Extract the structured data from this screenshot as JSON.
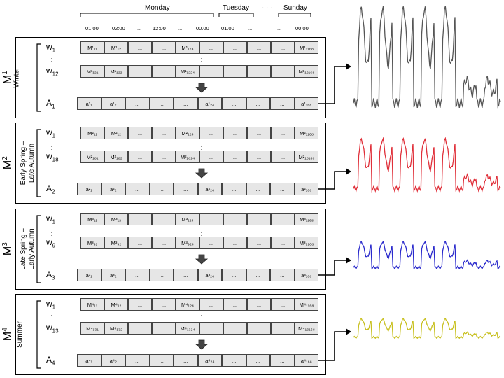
{
  "header": {
    "days": [
      "Monday",
      "Tuesday",
      "Sunday"
    ],
    "day_ellipsis": "· · ·",
    "times": [
      "01:00",
      "02:00",
      "...",
      "12:00",
      "...",
      "00.00",
      "01.00",
      "...",
      "...",
      "00.00"
    ]
  },
  "panels": [
    {
      "model": "M",
      "model_sup": "1",
      "season": "Winter",
      "rows": [
        {
          "w": "w",
          "w_sub": "1",
          "cells": [
            "M¹₁₁",
            "M¹₁₂",
            "...",
            "...",
            "M¹₁₂₄",
            "...",
            "...",
            "...",
            "...",
            "M¹₁₁₆₈"
          ]
        },
        {
          "w": "w",
          "w_sub": "12",
          "cells": [
            "M¹₁₂₁",
            "M¹₁₂₂",
            "...",
            "...",
            "M¹₁₂₂₄",
            "...",
            "...",
            "...",
            "...",
            "M¹₁₂₁₆₈"
          ]
        }
      ],
      "agg": {
        "a": "A",
        "a_sub": "1",
        "cells": [
          "a¹₁",
          "a¹₂",
          "...",
          "...",
          "...",
          "a¹₂₄",
          "...",
          "...",
          "...",
          "a¹₁₆₈"
        ]
      },
      "color": "#555555"
    },
    {
      "model": "M",
      "model_sup": "2",
      "season": "Early Spring – Late Autumn",
      "rows": [
        {
          "w": "w",
          "w_sub": "1",
          "cells": [
            "M²₁₁",
            "M²₁₂",
            "...",
            "...",
            "M²₁₂₄",
            "...",
            "...",
            "...",
            "...",
            "M²₁₁₆₈"
          ]
        },
        {
          "w": "w",
          "w_sub": "18",
          "cells": [
            "M²₁₈₁",
            "M²₁₈₂",
            "...",
            "...",
            "M²₁₈₂₄",
            "...",
            "...",
            "...",
            "...",
            "M²₁₈₁₆₈"
          ]
        }
      ],
      "agg": {
        "a": "A",
        "a_sub": "2",
        "cells": [
          "a²₁",
          "a²₂",
          "...",
          "...",
          "...",
          "a²₂₄",
          "...",
          "...",
          "...",
          "a²₁₆₈"
        ]
      },
      "color": "#e0303a"
    },
    {
      "model": "M",
      "model_sup": "3",
      "season": "Late Spring – Early Autumn",
      "rows": [
        {
          "w": "w",
          "w_sub": "1",
          "cells": [
            "M³₁₁",
            "M³₁₂",
            "...",
            "...",
            "M³₁₂₄",
            "...",
            "...",
            "...",
            "...",
            "M³₁₁₆₈"
          ]
        },
        {
          "w": "w",
          "w_sub": "9",
          "cells": [
            "M³₉₁",
            "M³₉₂",
            "...",
            "...",
            "M³₉₂₄",
            "...",
            "...",
            "...",
            "...",
            "M³₉₁₆₈"
          ]
        }
      ],
      "agg": {
        "a": "A",
        "a_sub": "3",
        "cells": [
          "a³₁",
          "a³₂",
          "...",
          "...",
          "...",
          "a³₂₄",
          "...",
          "...",
          "...",
          "a³₁₆₈"
        ]
      },
      "color": "#2a2acc"
    },
    {
      "model": "M",
      "model_sup": "4",
      "season": "Summer",
      "rows": [
        {
          "w": "w",
          "w_sub": "1",
          "cells": [
            "M⁴₁₁",
            "M⁴₁₂",
            "...",
            "...",
            "M⁴₁₂₄",
            "...",
            "...",
            "...",
            "...",
            "M⁴₁₁₆₈"
          ]
        },
        {
          "w": "w",
          "w_sub": "13",
          "cells": [
            "M⁴₁₃₁",
            "M⁴₁₃₂",
            "...",
            "...",
            "M⁴₁₃₂₄",
            "...",
            "...",
            "...",
            "...",
            "M⁴₁₃₁₆₈"
          ]
        }
      ],
      "agg": {
        "a": "A",
        "a_sub": "4",
        "cells": [
          "a⁴₁",
          "a⁴₂",
          "...",
          "...",
          "...",
          "a⁴₂₄",
          "...",
          "...",
          "...",
          "a⁴₁₆₈"
        ]
      },
      "color": "#c8c020"
    }
  ]
}
